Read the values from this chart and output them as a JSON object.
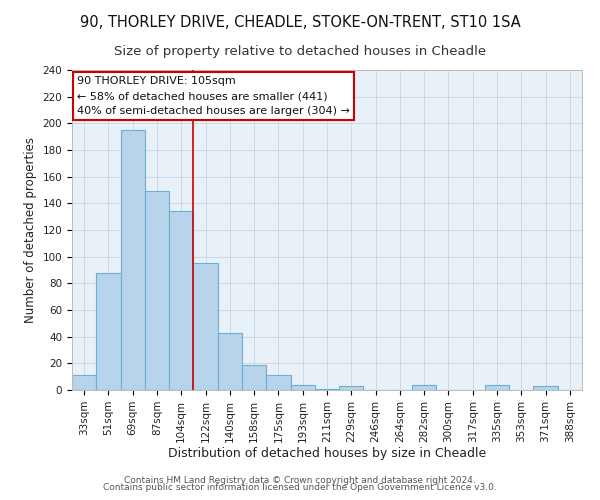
{
  "title": "90, THORLEY DRIVE, CHEADLE, STOKE-ON-TRENT, ST10 1SA",
  "subtitle": "Size of property relative to detached houses in Cheadle",
  "xlabel": "Distribution of detached houses by size in Cheadle",
  "ylabel": "Number of detached properties",
  "bar_labels": [
    "33sqm",
    "51sqm",
    "69sqm",
    "87sqm",
    "104sqm",
    "122sqm",
    "140sqm",
    "158sqm",
    "175sqm",
    "193sqm",
    "211sqm",
    "229sqm",
    "246sqm",
    "264sqm",
    "282sqm",
    "300sqm",
    "317sqm",
    "335sqm",
    "353sqm",
    "371sqm",
    "388sqm"
  ],
  "bar_values": [
    11,
    88,
    195,
    149,
    134,
    95,
    43,
    19,
    11,
    4,
    1,
    3,
    0,
    0,
    4,
    0,
    0,
    4,
    0,
    3,
    0
  ],
  "bar_color": "#b8d4ea",
  "bar_edge_color": "#6baed6",
  "highlight_index": 4,
  "highlight_line_color": "#cc0000",
  "ylim": [
    0,
    240
  ],
  "yticks": [
    0,
    20,
    40,
    60,
    80,
    100,
    120,
    140,
    160,
    180,
    200,
    220,
    240
  ],
  "annotation_line1": "90 THORLEY DRIVE: 105sqm",
  "annotation_line2": "← 58% of detached houses are smaller (441)",
  "annotation_line3": "40% of semi-detached houses are larger (304) →",
  "footer_line1": "Contains HM Land Registry data © Crown copyright and database right 2024.",
  "footer_line2": "Contains public sector information licensed under the Open Government Licence v3.0.",
  "background_color": "#ffffff",
  "axes_bg_color": "#e8f0f8",
  "grid_color": "#c8d4e4",
  "title_fontsize": 10.5,
  "subtitle_fontsize": 9.5,
  "xlabel_fontsize": 9,
  "ylabel_fontsize": 8.5,
  "tick_fontsize": 7.5,
  "annotation_fontsize": 8,
  "footer_fontsize": 6.5
}
